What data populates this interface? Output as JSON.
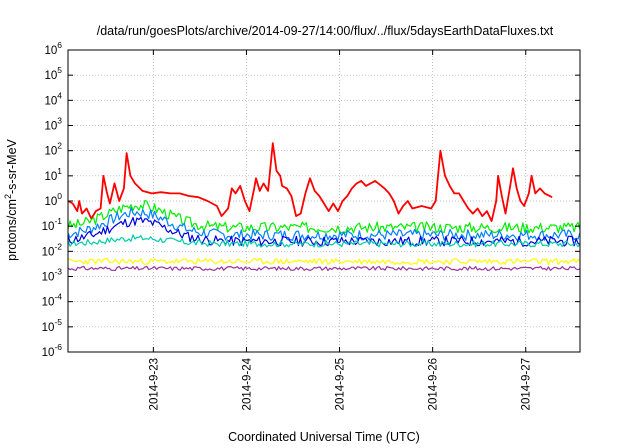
{
  "chart_data": {
    "type": "line",
    "title": "/data/run/goesPlots/archive/2014-09-27/14:00/flux/../flux/5daysEarthDataFluxes.txt",
    "xlabel": "Coordinated Universal Time (UTC)",
    "ylabel_base": "protons/cm",
    "ylabel_sup": "2",
    "ylabel_rest": "-s-sr-MeV",
    "x_range_days": [
      "2014-09-22 02:00",
      "2014-09-27 14:00"
    ],
    "x_ticks": [
      "2014-9-23",
      "2014-9-24",
      "2014-9-25",
      "2014-9-26",
      "2014-9-27"
    ],
    "y_scale": "log",
    "y_ticks": [
      {
        "base": "10",
        "exp": "-6"
      },
      {
        "base": "10",
        "exp": "-5"
      },
      {
        "base": "10",
        "exp": "-4"
      },
      {
        "base": "10",
        "exp": "-3"
      },
      {
        "base": "10",
        "exp": "-2"
      },
      {
        "base": "10",
        "exp": "-1"
      },
      {
        "base": "10",
        "exp": "0"
      },
      {
        "base": "10",
        "exp": "1"
      },
      {
        "base": "10",
        "exp": "2"
      },
      {
        "base": "10",
        "exp": "3"
      },
      {
        "base": "10",
        "exp": "4"
      },
      {
        "base": "10",
        "exp": "5"
      },
      {
        "base": "10",
        "exp": "6"
      }
    ],
    "ylim_log10": [
      -6,
      6
    ],
    "grid": true,
    "series": [
      {
        "color": "#ff0000",
        "points": [
          [
            0.0,
            0.0
          ],
          [
            0.05,
            -0.1
          ],
          [
            0.1,
            -0.4
          ],
          [
            0.12,
            0.0
          ],
          [
            0.15,
            -0.5
          ],
          [
            0.2,
            -0.3
          ],
          [
            0.25,
            -0.7
          ],
          [
            0.3,
            -0.4
          ],
          [
            0.35,
            -0.3
          ],
          [
            0.38,
            1.0
          ],
          [
            0.42,
            0.3
          ],
          [
            0.45,
            -0.1
          ],
          [
            0.5,
            0.7
          ],
          [
            0.55,
            0.0
          ],
          [
            0.6,
            0.5
          ],
          [
            0.63,
            1.9
          ],
          [
            0.67,
            1.0
          ],
          [
            0.72,
            0.7
          ],
          [
            0.8,
            0.4
          ],
          [
            0.9,
            0.3
          ],
          [
            1.0,
            0.35
          ],
          [
            1.1,
            0.3
          ],
          [
            1.2,
            0.3
          ],
          [
            1.3,
            0.2
          ],
          [
            1.4,
            0.15
          ],
          [
            1.5,
            0.0
          ],
          [
            1.6,
            -0.2
          ],
          [
            1.65,
            -0.6
          ],
          [
            1.72,
            -0.3
          ],
          [
            1.76,
            0.5
          ],
          [
            1.8,
            0.3
          ],
          [
            1.85,
            0.6
          ],
          [
            1.9,
            0.0
          ],
          [
            1.95,
            -0.4
          ],
          [
            2.0,
            0.5
          ],
          [
            2.02,
            0.9
          ],
          [
            2.06,
            0.4
          ],
          [
            2.1,
            0.7
          ],
          [
            2.15,
            0.4
          ],
          [
            2.2,
            2.3
          ],
          [
            2.24,
            1.2
          ],
          [
            2.28,
            1.0
          ],
          [
            2.3,
            0.6
          ],
          [
            2.35,
            0.5
          ],
          [
            2.4,
            0.2
          ],
          [
            2.45,
            -0.6
          ],
          [
            2.5,
            -0.5
          ],
          [
            2.55,
            0.3
          ],
          [
            2.6,
            0.9
          ],
          [
            2.65,
            0.4
          ],
          [
            2.7,
            0.2
          ],
          [
            2.75,
            -0.1
          ],
          [
            2.8,
            -0.4
          ],
          [
            2.85,
            -0.1
          ],
          [
            2.9,
            -0.4
          ],
          [
            2.95,
            0.0
          ],
          [
            3.0,
            0.2
          ],
          [
            3.05,
            0.5
          ],
          [
            3.1,
            0.7
          ],
          [
            3.15,
            0.8
          ],
          [
            3.2,
            0.6
          ],
          [
            3.3,
            0.8
          ],
          [
            3.4,
            0.5
          ],
          [
            3.45,
            0.3
          ],
          [
            3.5,
            0.0
          ],
          [
            3.55,
            -0.5
          ],
          [
            3.6,
            -0.2
          ],
          [
            3.65,
            0.0
          ],
          [
            3.7,
            -0.3
          ],
          [
            3.8,
            -0.2
          ],
          [
            3.9,
            -0.3
          ],
          [
            3.95,
            0.0
          ],
          [
            4.0,
            2.0
          ],
          [
            4.05,
            1.0
          ],
          [
            4.1,
            0.6
          ],
          [
            4.15,
            0.3
          ],
          [
            4.2,
            0.3
          ],
          [
            4.25,
            0.0
          ],
          [
            4.3,
            -0.3
          ],
          [
            4.35,
            -0.5
          ],
          [
            4.4,
            -0.3
          ],
          [
            4.45,
            -0.6
          ],
          [
            4.5,
            -0.4
          ],
          [
            4.55,
            -0.8
          ],
          [
            4.6,
            0.0
          ],
          [
            4.62,
            1.0
          ],
          [
            4.66,
            0.2
          ],
          [
            4.7,
            -0.5
          ],
          [
            4.75,
            0.6
          ],
          [
            4.78,
            1.3
          ],
          [
            4.82,
            0.5
          ],
          [
            4.86,
            0.0
          ],
          [
            4.9,
            -0.2
          ],
          [
            4.95,
            0.3
          ],
          [
            4.98,
            1.0
          ],
          [
            5.02,
            0.3
          ],
          [
            5.07,
            0.5
          ],
          [
            5.12,
            0.3
          ],
          [
            5.2,
            0.15
          ]
        ]
      },
      {
        "color": "#00ee00",
        "base": -1.05,
        "noise": 0.22,
        "hump": 1.0,
        "seed": 3
      },
      {
        "color": "#0080ff",
        "base": -1.35,
        "noise": 0.22,
        "hump": 1.0,
        "seed": 7
      },
      {
        "color": "#0000dd",
        "base": -1.6,
        "noise": 0.2,
        "hump": 0.9,
        "seed": 11
      },
      {
        "color": "#00ccaa",
        "base": -1.7,
        "noise": 0.13,
        "hump": 0.25,
        "seed": 17
      },
      {
        "color": "#ffff00",
        "base": -2.4,
        "noise": 0.12,
        "hump": 0.0,
        "seed": 23
      },
      {
        "color": "#993399",
        "base": -2.68,
        "noise": 0.08,
        "hump": 0.0,
        "seed": 31
      }
    ]
  }
}
